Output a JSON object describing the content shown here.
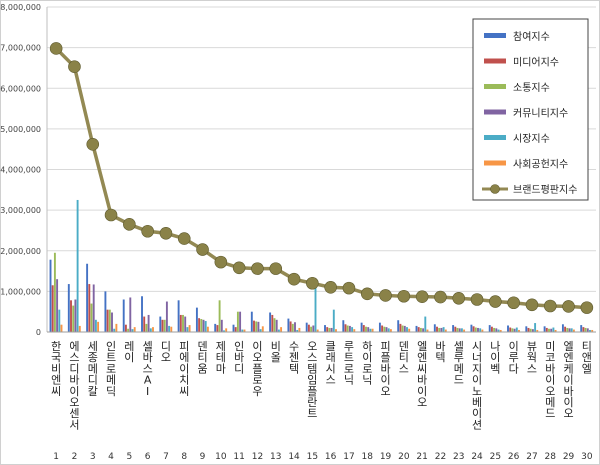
{
  "chart_data": {
    "type": "bar",
    "title": "",
    "xlabel": "",
    "ylabel": "",
    "ylim": [
      0,
      8000000
    ],
    "yticks": [
      0,
      1000000,
      2000000,
      3000000,
      4000000,
      5000000,
      6000000,
      7000000,
      8000000
    ],
    "ytick_labels": [
      "0",
      "1,000,000",
      "2,000,000",
      "3,000,000",
      "4,000,000",
      "5,000,000",
      "6,000,000",
      "7,000,000",
      "8,000,000"
    ],
    "grid": true,
    "legend_position": "top-right",
    "ranks": [
      "1",
      "2",
      "3",
      "4",
      "5",
      "6",
      "7",
      "8",
      "9",
      "10",
      "11",
      "12",
      "13",
      "14",
      "15",
      "16",
      "17",
      "18",
      "19",
      "20",
      "21",
      "22",
      "23",
      "24",
      "25",
      "26",
      "27",
      "28",
      "29",
      "30"
    ],
    "categories": [
      "한국비엔씨",
      "에스디바이오센서",
      "세종메디칼",
      "인트로메딕",
      "레이",
      "셀바스AI",
      "디오",
      "피에이치씨",
      "덴티움",
      "제테마",
      "인바디",
      "이오플로우",
      "비올",
      "수젠텍",
      "오스템임플란트",
      "클래시스",
      "루트로닉",
      "하이로닉",
      "피플바이오",
      "덴티스",
      "엘엔씨바이오",
      "바텍",
      "셀루메드",
      "시너지이노베이션",
      "나이벡",
      "이루다",
      "뷰웍스",
      "미코바이오메드",
      "엘엔케이바이오",
      "티앤엘"
    ],
    "series": [
      {
        "name": "참여지수",
        "color": "#4472C4",
        "values": [
          1780000,
          1180000,
          1680000,
          1000000,
          800000,
          880000,
          380000,
          780000,
          600000,
          200000,
          180000,
          500000,
          480000,
          330000,
          230000,
          170000,
          290000,
          230000,
          230000,
          290000,
          150000,
          190000,
          170000,
          180000,
          170000,
          160000,
          140000,
          140000,
          190000,
          170000
        ]
      },
      {
        "name": "미디어지수",
        "color": "#C0504D",
        "values": [
          1150000,
          780000,
          1180000,
          550000,
          180000,
          380000,
          300000,
          420000,
          340000,
          170000,
          120000,
          280000,
          420000,
          260000,
          180000,
          120000,
          190000,
          170000,
          160000,
          200000,
          120000,
          130000,
          130000,
          140000,
          130000,
          110000,
          100000,
          100000,
          130000,
          120000
        ]
      },
      {
        "name": "소통지수",
        "color": "#9BBB59",
        "values": [
          1950000,
          650000,
          700000,
          550000,
          80000,
          200000,
          300000,
          420000,
          320000,
          780000,
          500000,
          260000,
          340000,
          200000,
          130000,
          100000,
          160000,
          130000,
          130000,
          160000,
          100000,
          100000,
          100000,
          110000,
          100000,
          90000,
          80000,
          80000,
          100000,
          100000
        ]
      },
      {
        "name": "커뮤니티지수",
        "color": "#8064A2",
        "values": [
          1300000,
          800000,
          1170000,
          480000,
          850000,
          420000,
          750000,
          380000,
          300000,
          300000,
          500000,
          250000,
          300000,
          240000,
          160000,
          100000,
          150000,
          120000,
          120000,
          150000,
          90000,
          100000,
          90000,
          100000,
          90000,
          80000,
          70000,
          80000,
          90000,
          90000
        ]
      },
      {
        "name": "시장지수",
        "color": "#4BACC6",
        "values": [
          550000,
          3250000,
          300000,
          80000,
          70000,
          90000,
          150000,
          120000,
          270000,
          40000,
          60000,
          70000,
          60000,
          50000,
          1200000,
          550000,
          120000,
          80000,
          90000,
          120000,
          380000,
          120000,
          90000,
          90000,
          60000,
          110000,
          220000,
          110000,
          90000,
          50000
        ]
      },
      {
        "name": "사회공헌지수",
        "color": "#F79646",
        "values": [
          180000,
          150000,
          250000,
          200000,
          120000,
          120000,
          130000,
          170000,
          130000,
          90000,
          60000,
          140000,
          120000,
          100000,
          60000,
          70000,
          70000,
          80000,
          70000,
          80000,
          60000,
          60000,
          60000,
          60000,
          50000,
          50000,
          50000,
          50000,
          60000,
          50000
        ]
      }
    ],
    "line": {
      "name": "브랜드평판지수",
      "color": "#938953",
      "values": [
        6980000,
        6530000,
        4620000,
        2880000,
        2650000,
        2480000,
        2430000,
        2300000,
        2030000,
        1720000,
        1580000,
        1560000,
        1560000,
        1300000,
        1200000,
        1100000,
        1080000,
        940000,
        900000,
        880000,
        870000,
        860000,
        830000,
        800000,
        750000,
        720000,
        670000,
        640000,
        630000,
        600000
      ]
    }
  }
}
